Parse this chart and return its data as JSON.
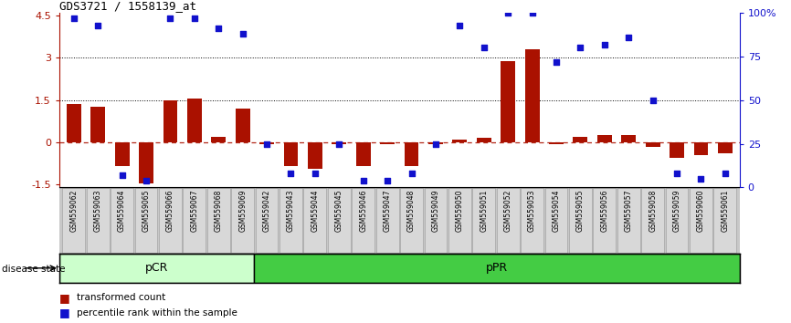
{
  "title": "GDS3721 / 1558139_at",
  "samples": [
    "GSM559062",
    "GSM559063",
    "GSM559064",
    "GSM559065",
    "GSM559066",
    "GSM559067",
    "GSM559068",
    "GSM559069",
    "GSM559042",
    "GSM559043",
    "GSM559044",
    "GSM559045",
    "GSM559046",
    "GSM559047",
    "GSM559048",
    "GSM559049",
    "GSM559050",
    "GSM559051",
    "GSM559052",
    "GSM559053",
    "GSM559054",
    "GSM559055",
    "GSM559056",
    "GSM559057",
    "GSM559058",
    "GSM559059",
    "GSM559060",
    "GSM559061"
  ],
  "transformed_count": [
    1.35,
    1.25,
    -0.85,
    -1.45,
    1.5,
    1.55,
    0.2,
    1.2,
    -0.05,
    -0.85,
    -0.95,
    -0.05,
    -0.85,
    -0.05,
    -0.85,
    -0.05,
    0.1,
    0.15,
    2.9,
    3.3,
    -0.05,
    0.2,
    0.25,
    0.25,
    -0.15,
    -0.55,
    -0.45,
    -0.4
  ],
  "percentile_rank": [
    97,
    93,
    7,
    4,
    97,
    97,
    91,
    88,
    25,
    8,
    8,
    25,
    4,
    4,
    8,
    25,
    93,
    80,
    100,
    100,
    72,
    80,
    82,
    86,
    50,
    8,
    5,
    8
  ],
  "n_pCR": 8,
  "bar_color": "#aa1100",
  "dot_color": "#1111cc",
  "pCR_facecolor": "#ccffcc",
  "pPR_facecolor": "#44cc44",
  "pCR_label": "pCR",
  "pPR_label": "pPR",
  "left_ylim": [
    -1.6,
    4.6
  ],
  "right_ylim": [
    0,
    100
  ],
  "left_yticks": [
    -1.5,
    0.0,
    1.5,
    3.0,
    4.5
  ],
  "right_yticks": [
    0,
    25,
    50,
    75,
    100
  ],
  "background": "#ffffff",
  "xticklabel_bg": "#d8d8d8",
  "disease_state_label": "disease state"
}
